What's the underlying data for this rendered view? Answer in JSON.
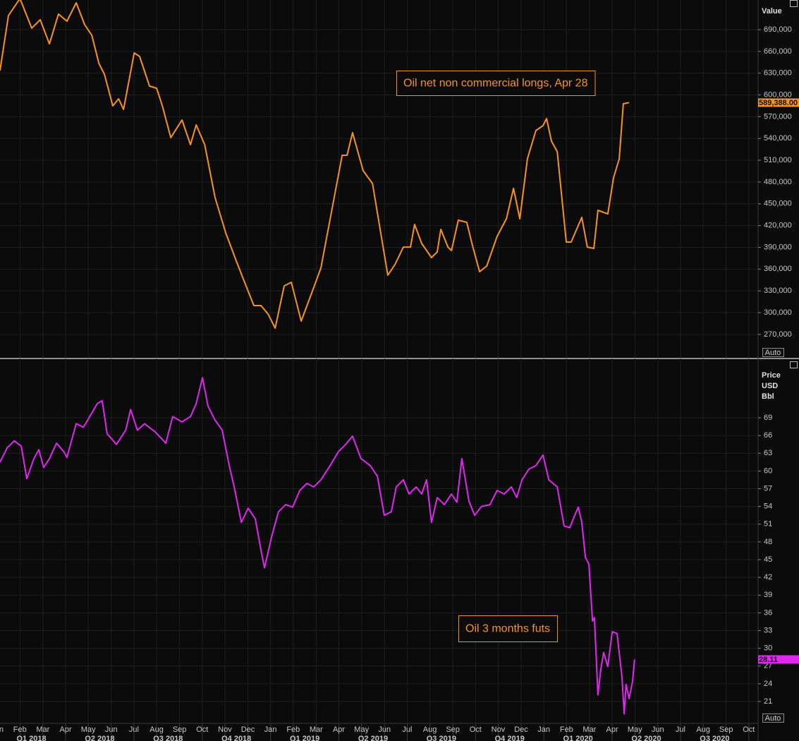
{
  "chart_data": [
    {
      "type": "line",
      "color": "#f7941d",
      "grid": true,
      "annotation": "Oil net non commercial longs, Apr 28",
      "y_label": "Value",
      "button": "Auto",
      "last_value": {
        "value": 589388,
        "label": "589,388.00"
      },
      "xlim": [
        2018.01,
        2020.784
      ],
      "ylim": [
        237756,
        730848
      ],
      "yticks": [
        {
          "value": 270000,
          "label": "270,000"
        },
        {
          "value": 300000,
          "label": "300,000"
        },
        {
          "value": 330000,
          "label": "330,000"
        },
        {
          "value": 360000,
          "label": "360,000"
        },
        {
          "value": 390000,
          "label": "390,000"
        },
        {
          "value": 420000,
          "label": "420,000"
        },
        {
          "value": 450000,
          "label": "450,000"
        },
        {
          "value": 480000,
          "label": "480,000"
        },
        {
          "value": 510000,
          "label": "510,000"
        },
        {
          "value": 540000,
          "label": "540,000"
        },
        {
          "value": 570000,
          "label": "570,000"
        },
        {
          "value": 600000,
          "label": "600,000"
        },
        {
          "value": 630000,
          "label": "630,000"
        },
        {
          "value": 660000,
          "label": "660,000"
        },
        {
          "value": 690000,
          "label": "690,000"
        }
      ],
      "x": [
        2018.01,
        2018.041,
        2018.083,
        2018.126,
        2018.157,
        2018.191,
        2018.224,
        2018.255,
        2018.289,
        2018.32,
        2018.346,
        2018.372,
        2018.392,
        2018.423,
        2018.444,
        2018.462,
        2018.501,
        2018.521,
        2018.557,
        2018.583,
        2018.604,
        2018.635,
        2018.676,
        2018.707,
        2018.728,
        2018.759,
        2018.797,
        2018.836,
        2018.875,
        2018.9,
        2018.939,
        2018.965,
        2018.991,
        2019.017,
        2019.05,
        2019.076,
        2019.112,
        2019.146,
        2019.184,
        2019.223,
        2019.262,
        2019.28,
        2019.3,
        2019.339,
        2019.373,
        2019.429,
        2019.455,
        2019.486,
        2019.512,
        2019.527,
        2019.553,
        2019.589,
        2019.61,
        2019.623,
        2019.649,
        2019.662,
        2019.687,
        2019.718,
        2019.739,
        2019.765,
        2019.791,
        2019.829,
        2019.863,
        2019.889,
        2019.912,
        2019.94,
        2019.971,
        2019.997,
        2020.01,
        2020.028,
        2020.049,
        2020.082,
        2020.1,
        2020.139,
        2020.159,
        2020.183,
        2020.198,
        2020.234,
        2020.255,
        2020.276,
        2020.291,
        2020.312
      ],
      "values": [
        633600,
        709500,
        732800,
        692000,
        703600,
        670500,
        711400,
        701700,
        727000,
        696800,
        682200,
        643300,
        628700,
        585000,
        594700,
        580100,
        657900,
        653000,
        612200,
        609300,
        585000,
        541200,
        565500,
        531500,
        558700,
        531500,
        458500,
        409900,
        370900,
        346700,
        309700,
        309700,
        298000,
        278600,
        336900,
        341800,
        288300,
        322400,
        361300,
        439100,
        516900,
        516900,
        548000,
        495500,
        478000,
        351500,
        366100,
        390400,
        390400,
        421600,
        395300,
        375800,
        383600,
        414800,
        390400,
        385600,
        427400,
        424500,
        392400,
        356400,
        364200,
        405000,
        429400,
        471200,
        429400,
        512000,
        550900,
        557700,
        567500,
        536300,
        521700,
        397300,
        397300,
        431300,
        390400,
        388500,
        441000,
        436100,
        485800,
        512000,
        587900,
        589388
      ]
    },
    {
      "type": "line",
      "color": "#e028f0",
      "grid": true,
      "annotation": "Oil 3 months futs",
      "y_label": [
        "Price",
        "USD",
        "Bbl"
      ],
      "button": "Auto",
      "last_value": {
        "value": 28.11,
        "label": "28.11"
      },
      "xlim": [
        2018.01,
        2020.784
      ],
      "ylim": [
        17.3,
        79.03
      ],
      "yticks": [
        21,
        24,
        27,
        30,
        33,
        36,
        39,
        42,
        45,
        48,
        51,
        54,
        57,
        60,
        63,
        66,
        69
      ],
      "xticks": [
        {
          "value": 2018.0,
          "label": "Jan"
        },
        {
          "value": 2018.083,
          "label": "Feb"
        },
        {
          "value": 2018.167,
          "label": "Mar"
        },
        {
          "value": 2018.25,
          "label": "Apr"
        },
        {
          "value": 2018.333,
          "label": "May"
        },
        {
          "value": 2018.417,
          "label": "Jun"
        },
        {
          "value": 2018.5,
          "label": "Jul"
        },
        {
          "value": 2018.583,
          "label": "Aug"
        },
        {
          "value": 2018.667,
          "label": "Sep"
        },
        {
          "value": 2018.75,
          "label": "Oct"
        },
        {
          "value": 2018.833,
          "label": "Nov"
        },
        {
          "value": 2018.917,
          "label": "Dec"
        },
        {
          "value": 2019.0,
          "label": "Jan"
        },
        {
          "value": 2019.083,
          "label": "Feb"
        },
        {
          "value": 2019.167,
          "label": "Mar"
        },
        {
          "value": 2019.25,
          "label": "Apr"
        },
        {
          "value": 2019.333,
          "label": "May"
        },
        {
          "value": 2019.417,
          "label": "Jun"
        },
        {
          "value": 2019.5,
          "label": "Jul"
        },
        {
          "value": 2019.583,
          "label": "Aug"
        },
        {
          "value": 2019.667,
          "label": "Sep"
        },
        {
          "value": 2019.75,
          "label": "Oct"
        },
        {
          "value": 2019.833,
          "label": "Nov"
        },
        {
          "value": 2019.917,
          "label": "Dec"
        },
        {
          "value": 2020.0,
          "label": "Jan"
        },
        {
          "value": 2020.083,
          "label": "Feb"
        },
        {
          "value": 2020.167,
          "label": "Mar"
        },
        {
          "value": 2020.25,
          "label": "Apr"
        },
        {
          "value": 2020.333,
          "label": "May"
        },
        {
          "value": 2020.417,
          "label": "Jun"
        },
        {
          "value": 2020.5,
          "label": "Jul"
        },
        {
          "value": 2020.583,
          "label": "Aug"
        },
        {
          "value": 2020.667,
          "label": "Sep"
        },
        {
          "value": 2020.75,
          "label": "Oct"
        }
      ],
      "x_group_labels": [
        "Q1 2018",
        "Q2 2018",
        "Q3 2018",
        "Q4 2018",
        "Q1 2019",
        "Q2 2019",
        "Q3 2019",
        "Q4 2019",
        "Q1 2020",
        "Q2 2020",
        "Q3 2020"
      ],
      "x": [
        2018.01,
        2018.036,
        2018.062,
        2018.088,
        2018.108,
        2018.134,
        2018.152,
        2018.17,
        2018.191,
        2018.217,
        2018.243,
        2018.255,
        2018.289,
        2018.315,
        2018.346,
        2018.366,
        2018.384,
        2018.402,
        2018.436,
        2018.47,
        2018.488,
        2018.513,
        2018.539,
        2018.578,
        2018.617,
        2018.642,
        2018.676,
        2018.707,
        2018.728,
        2018.751,
        2018.771,
        2018.797,
        2018.823,
        2018.849,
        2018.867,
        2018.893,
        2018.918,
        2018.944,
        2018.965,
        2018.978,
        2019.004,
        2019.029,
        2019.055,
        2019.081,
        2019.107,
        2019.133,
        2019.158,
        2019.184,
        2019.218,
        2019.249,
        2019.275,
        2019.3,
        2019.331,
        2019.365,
        2019.391,
        2019.416,
        2019.442,
        2019.46,
        2019.486,
        2019.507,
        2019.533,
        2019.553,
        2019.571,
        2019.589,
        2019.61,
        2019.636,
        2019.662,
        2019.682,
        2019.7,
        2019.726,
        2019.747,
        2019.772,
        2019.803,
        2019.829,
        2019.855,
        2019.881,
        2019.901,
        2019.92,
        2019.945,
        2019.971,
        2019.997,
        2020.018,
        2020.049,
        2020.074,
        2020.095,
        2020.113,
        2020.126,
        2020.139,
        2020.152,
        2020.165,
        2020.178,
        2020.185,
        2020.198,
        2020.208,
        2020.219,
        2020.234,
        2020.25,
        2020.268,
        2020.286,
        2020.294,
        2020.301,
        2020.312,
        2020.325,
        2020.332
      ],
      "values": [
        61.5,
        63.9,
        65.1,
        64.2,
        58.7,
        62.1,
        63.6,
        60.6,
        62.1,
        64.7,
        63.3,
        62.3,
        68.0,
        67.4,
        69.8,
        71.4,
        71.9,
        66.3,
        64.5,
        66.9,
        70.4,
        66.9,
        68.0,
        66.6,
        64.7,
        69.2,
        68.3,
        69.2,
        71.4,
        75.8,
        71.0,
        68.6,
        66.9,
        60.9,
        57.3,
        51.3,
        53.7,
        51.9,
        46.6,
        43.6,
        48.9,
        53.1,
        54.3,
        53.9,
        56.7,
        57.9,
        57.3,
        58.5,
        60.9,
        63.3,
        64.5,
        65.9,
        62.1,
        60.9,
        59.1,
        52.5,
        53.1,
        57.3,
        58.5,
        56.1,
        57.3,
        56.1,
        58.5,
        51.3,
        55.5,
        54.3,
        56.1,
        54.7,
        62.1,
        54.9,
        52.5,
        54.0,
        54.3,
        56.7,
        56.1,
        57.3,
        55.5,
        58.5,
        60.3,
        60.9,
        62.7,
        58.5,
        57.3,
        50.7,
        50.4,
        52.5,
        53.9,
        51.3,
        45.4,
        44.2,
        34.6,
        35.2,
        22.1,
        26.3,
        29.3,
        26.9,
        32.8,
        32.5,
        25.1,
        18.9,
        23.9,
        21.5,
        24.5,
        28.11
      ]
    }
  ]
}
